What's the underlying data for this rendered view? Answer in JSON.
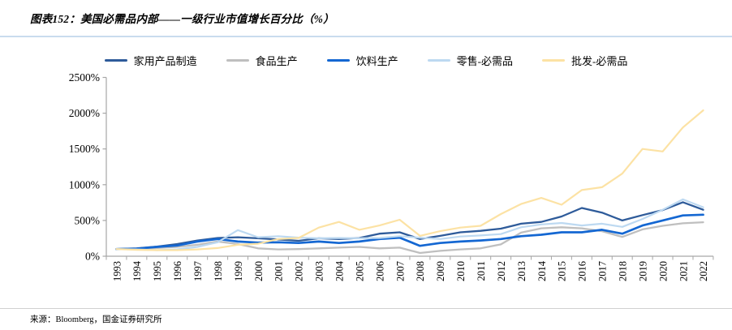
{
  "source": "来源：Bloomberg，国金证券研究所",
  "colors": {
    "title_rule": "#c9dcee",
    "source_rule": "#d0d0d0",
    "axis": "#a6a6a6",
    "text": "#000000"
  },
  "chart_data": {
    "type": "line",
    "title": "图表152：美国必需品内部——一级行业市值增长百分比（%）",
    "xlabel": "",
    "ylabel": "",
    "ylim": [
      0,
      2500
    ],
    "ytick_step": 500,
    "ytick_suffix": "%",
    "grid": false,
    "legend_position": "top",
    "x": [
      "1993",
      "1994",
      "1995",
      "1996",
      "1997",
      "1998",
      "1999",
      "2000",
      "2001",
      "2002",
      "2003",
      "2004",
      "2005",
      "2006",
      "2007",
      "2008",
      "2009",
      "2010",
      "2011",
      "2012",
      "2013",
      "2014",
      "2015",
      "2016",
      "2017",
      "2018",
      "2019",
      "2020",
      "2021",
      "2022"
    ],
    "series": [
      {
        "name": "家用产品制造",
        "key": "household-products-mfg",
        "color": "#2e5b9a",
        "stroke_width": 2.3,
        "values": [
          100,
          110,
          135,
          170,
          220,
          255,
          265,
          250,
          235,
          215,
          250,
          240,
          255,
          315,
          335,
          240,
          285,
          335,
          355,
          385,
          455,
          480,
          555,
          675,
          610,
          500,
          575,
          645,
          755,
          650
        ]
      },
      {
        "name": "食品生产",
        "key": "food-production",
        "color": "#bfbfbf",
        "stroke_width": 2.3,
        "values": [
          100,
          100,
          115,
          130,
          160,
          205,
          170,
          110,
          95,
          100,
          110,
          120,
          130,
          110,
          120,
          45,
          75,
          95,
          110,
          165,
          330,
          390,
          405,
          390,
          350,
          270,
          375,
          425,
          460,
          475
        ]
      },
      {
        "name": "饮料生产",
        "key": "beverage-production",
        "color": "#1467d2",
        "stroke_width": 2.7,
        "values": [
          100,
          105,
          130,
          150,
          205,
          240,
          205,
          190,
          195,
          185,
          205,
          185,
          205,
          240,
          260,
          145,
          185,
          205,
          220,
          240,
          280,
          300,
          335,
          335,
          370,
          315,
          430,
          500,
          570,
          580
        ]
      },
      {
        "name": "零售-必需品",
        "key": "retail-staples",
        "color": "#bdd9f1",
        "stroke_width": 2.2,
        "values": [
          100,
          95,
          85,
          95,
          130,
          195,
          365,
          265,
          280,
          260,
          250,
          255,
          250,
          255,
          280,
          260,
          240,
          275,
          290,
          310,
          405,
          445,
          465,
          430,
          455,
          410,
          520,
          650,
          795,
          685
        ]
      },
      {
        "name": "批发-必需品",
        "key": "wholesale-staples",
        "color": "#fce2a4",
        "stroke_width": 2.2,
        "values": [
          100,
          90,
          85,
          85,
          95,
          115,
          160,
          175,
          240,
          255,
          400,
          480,
          370,
          430,
          510,
          285,
          350,
          400,
          425,
          590,
          730,
          815,
          720,
          925,
          965,
          1155,
          1500,
          1465,
          1800,
          2040
        ]
      }
    ]
  }
}
